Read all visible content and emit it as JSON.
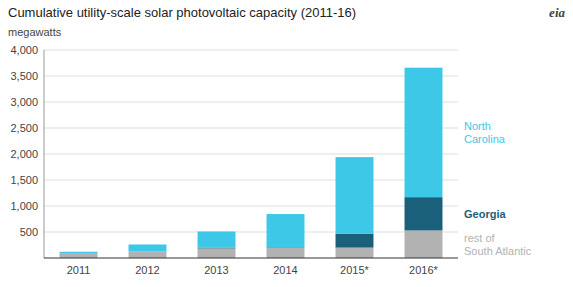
{
  "chart_data": {
    "type": "bar",
    "stacked": true,
    "title": "Cumulative utility-scale solar photovoltaic capacity (2011-16)",
    "y_label": "megawatts",
    "annotations": [
      "eia"
    ],
    "categories": [
      "2011",
      "2012",
      "2013",
      "2014",
      "2015*",
      "2016*"
    ],
    "series": [
      {
        "name": "rest of\nSouth Atlantic",
        "color": "#b2b2b2",
        "values": [
          95,
          130,
          185,
          195,
          200,
          530
        ]
      },
      {
        "name": "Georgia",
        "color": "#1b607a",
        "values": [
          0,
          0,
          10,
          10,
          270,
          640
        ]
      },
      {
        "name": "North\nCarolina",
        "color": "#3ec8e8",
        "values": [
          25,
          130,
          315,
          640,
          1470,
          2490
        ]
      }
    ],
    "ylim": [
      0,
      4000
    ],
    "yticks": [
      500,
      {
        "value": 1000,
        "label": "1,000"
      },
      {
        "value": 1500,
        "label": "1,500"
      },
      {
        "value": 2000,
        "label": "2,000"
      },
      {
        "value": 2500,
        "label": "2,500"
      },
      {
        "value": 3000,
        "label": "3,000"
      },
      {
        "value": 3500,
        "label": "3,500"
      },
      {
        "value": 4000,
        "label": "4,000"
      }
    ],
    "grid": true
  }
}
